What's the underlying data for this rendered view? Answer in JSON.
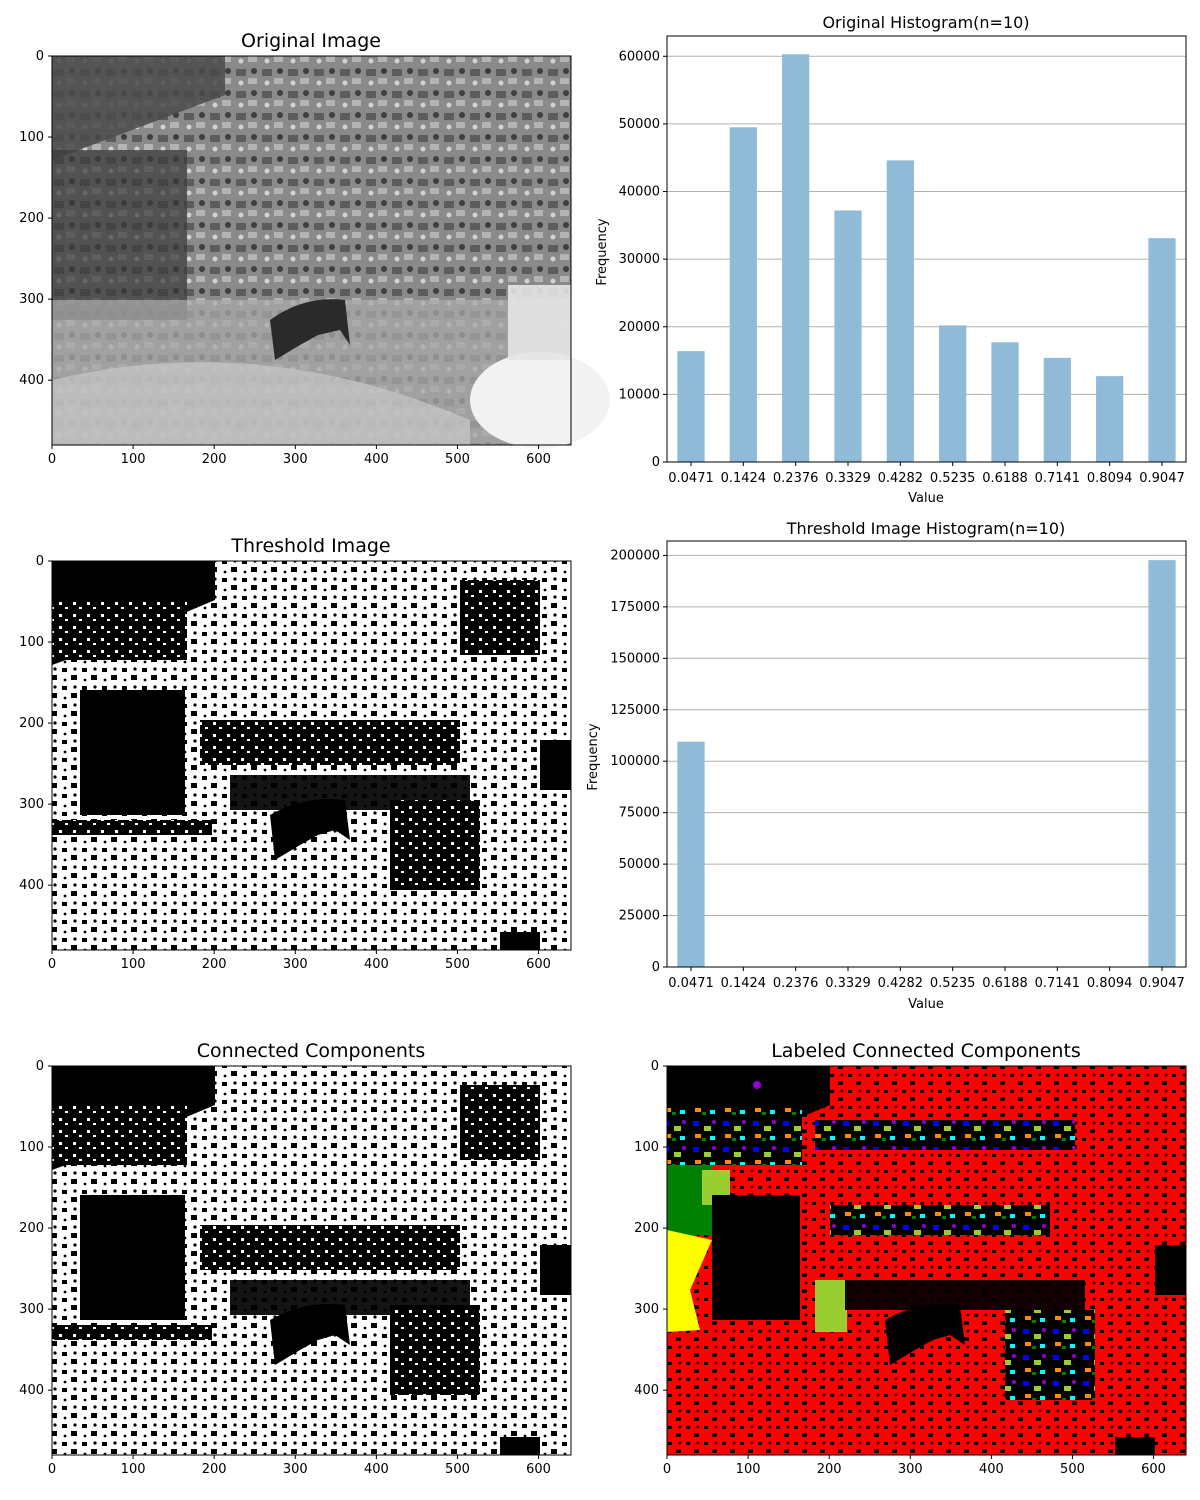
{
  "chart_data": [
    {
      "type": "image",
      "title": "Original Image",
      "x_ticks": [
        "0",
        "100",
        "200",
        "300",
        "400",
        "500",
        "600"
      ],
      "y_ticks": [
        "0",
        "100",
        "200",
        "300",
        "400"
      ],
      "xlim": [
        0,
        640
      ],
      "ylim": [
        480,
        0
      ],
      "colormap": "gray"
    },
    {
      "type": "bar",
      "title": "Original Histogram(n=10)",
      "xlabel": "Value",
      "ylabel": "Frequency",
      "categories": [
        "0.0471",
        "0.1424",
        "0.2376",
        "0.3329",
        "0.4282",
        "0.5235",
        "0.6188",
        "0.7141",
        "0.8094",
        "0.9047"
      ],
      "values": [
        16400,
        49500,
        60300,
        37200,
        44600,
        20200,
        17700,
        15400,
        12700,
        33100
      ],
      "ylim": [
        0,
        63000
      ],
      "y_ticks": [
        0,
        10000,
        20000,
        30000,
        40000,
        50000,
        60000
      ],
      "grid": "y",
      "color": "#8fbad8"
    },
    {
      "type": "image",
      "title": "Threshold Image",
      "x_ticks": [
        "0",
        "100",
        "200",
        "300",
        "400",
        "500",
        "600"
      ],
      "y_ticks": [
        "0",
        "100",
        "200",
        "300",
        "400"
      ],
      "xlim": [
        0,
        640
      ],
      "ylim": [
        480,
        0
      ],
      "colormap": "binary"
    },
    {
      "type": "bar",
      "title": "Threshold Image Histogram(n=10)",
      "xlabel": "Value",
      "ylabel": "Frequency",
      "categories": [
        "0.0471",
        "0.1424",
        "0.2376",
        "0.3329",
        "0.4282",
        "0.5235",
        "0.6188",
        "0.7141",
        "0.8094",
        "0.9047"
      ],
      "values": [
        109500,
        0,
        0,
        0,
        0,
        0,
        0,
        0,
        0,
        197700
      ],
      "ylim": [
        0,
        207000
      ],
      "y_ticks": [
        0,
        25000,
        50000,
        75000,
        100000,
        125000,
        150000,
        175000,
        200000
      ],
      "grid": "y",
      "color": "#8fbad8"
    },
    {
      "type": "image",
      "title": "Connected Components",
      "x_ticks": [
        "0",
        "100",
        "200",
        "300",
        "400",
        "500",
        "600"
      ],
      "y_ticks": [
        "0",
        "100",
        "200",
        "300",
        "400"
      ],
      "xlim": [
        0,
        640
      ],
      "ylim": [
        480,
        0
      ],
      "colormap": "binary"
    },
    {
      "type": "image",
      "title": "Labeled Connected Components",
      "x_ticks": [
        "0",
        "100",
        "200",
        "300",
        "400",
        "500",
        "600"
      ],
      "y_ticks": [
        "0",
        "100",
        "200",
        "300",
        "400"
      ],
      "xlim": [
        0,
        640
      ],
      "ylim": [
        480,
        0
      ],
      "colormap": "labels",
      "label_colors": [
        "#000000",
        "#ff0000",
        "#008000",
        "#ffff00",
        "#9acd32",
        "#0000ff",
        "#ff8c00",
        "#00ffff",
        "#9400d3",
        "#ffc0cb"
      ]
    }
  ]
}
